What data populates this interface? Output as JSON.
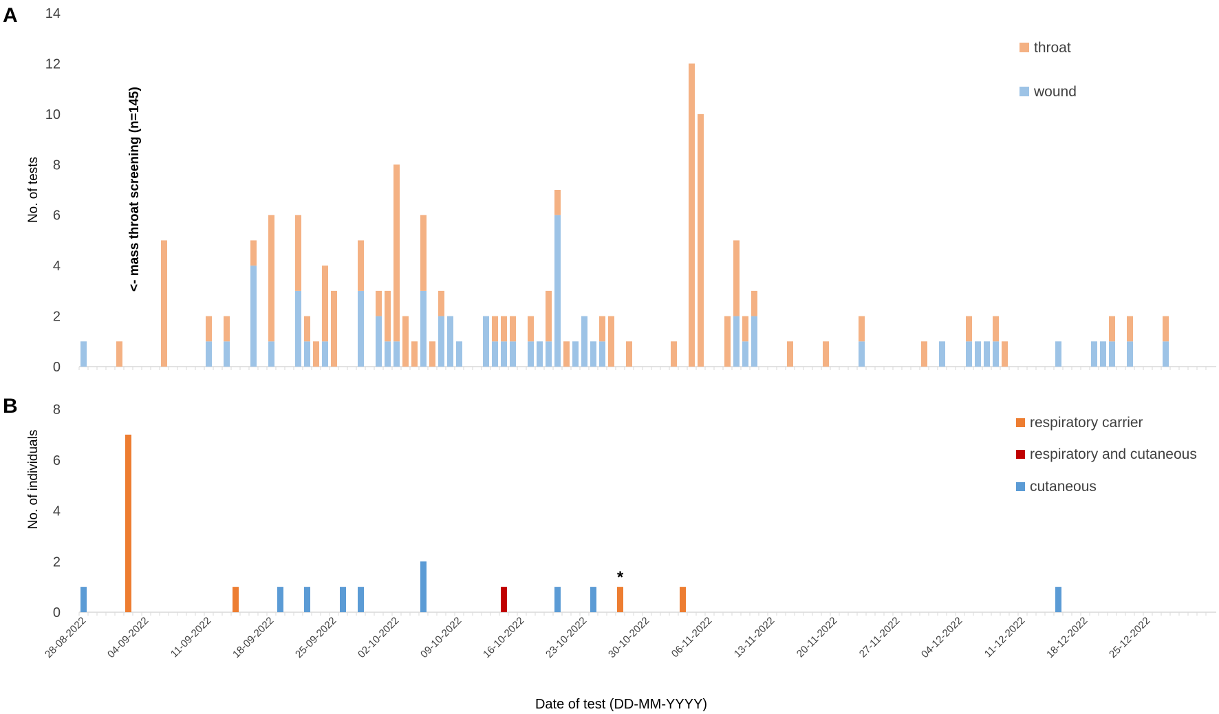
{
  "panel_labels": [
    "A",
    "B"
  ],
  "annotations": {
    "mass_screening": "<- mass throat screening (n=145)",
    "star": "*"
  },
  "xlabel": "Date of test (DD-MM-YYYY)",
  "x_tick_labels": [
    "28-08-2022",
    "04-09-2022",
    "11-09-2022",
    "18-09-2022",
    "25-09-2022",
    "02-10-2022",
    "09-10-2022",
    "16-10-2022",
    "23-10-2022",
    "30-10-2022",
    "06-11-2022",
    "13-11-2022",
    "20-11-2022",
    "27-11-2022",
    "04-12-2022",
    "11-12-2022",
    "18-12-2022",
    "25-12-2022"
  ],
  "colors": {
    "throat": "#F4B183",
    "wound": "#9DC3E6",
    "respiratory_carrier": "#ED7D31",
    "respiratory_and_cutaneous": "#C00000",
    "cutaneous": "#5B9BD5",
    "axis": "#d9d9d9",
    "text": "#404040"
  },
  "chart_data": [
    {
      "panel": "A",
      "type": "bar",
      "stacked": true,
      "x_type": "date",
      "x_range": [
        "2022-08-28",
        "2022-12-31"
      ],
      "ylabel": "No. of tests",
      "ylim": [
        0,
        14
      ],
      "y_ticks": [
        0,
        2,
        4,
        6,
        8,
        10,
        12,
        14
      ],
      "legend_position": "top-right",
      "series": [
        {
          "name": "wound",
          "points": [
            [
              "2022-08-28",
              1
            ],
            [
              "2022-09-11",
              1
            ],
            [
              "2022-09-13",
              1
            ],
            [
              "2022-09-16",
              4
            ],
            [
              "2022-09-18",
              1
            ],
            [
              "2022-09-21",
              3
            ],
            [
              "2022-09-22",
              1
            ],
            [
              "2022-09-24",
              1
            ],
            [
              "2022-09-28",
              3
            ],
            [
              "2022-09-30",
              2
            ],
            [
              "2022-10-01",
              1
            ],
            [
              "2022-10-02",
              1
            ],
            [
              "2022-10-05",
              3
            ],
            [
              "2022-10-07",
              2
            ],
            [
              "2022-10-08",
              2
            ],
            [
              "2022-10-09",
              1
            ],
            [
              "2022-10-12",
              2
            ],
            [
              "2022-10-13",
              1
            ],
            [
              "2022-10-14",
              1
            ],
            [
              "2022-10-15",
              1
            ],
            [
              "2022-10-17",
              1
            ],
            [
              "2022-10-18",
              1
            ],
            [
              "2022-10-19",
              1
            ],
            [
              "2022-10-20",
              6
            ],
            [
              "2022-10-22",
              1
            ],
            [
              "2022-10-23",
              2
            ],
            [
              "2022-10-24",
              1
            ],
            [
              "2022-10-25",
              1
            ],
            [
              "2022-11-09",
              2
            ],
            [
              "2022-11-10",
              1
            ],
            [
              "2022-11-11",
              2
            ],
            [
              "2022-11-23",
              1
            ],
            [
              "2022-12-02",
              1
            ],
            [
              "2022-12-05",
              1
            ],
            [
              "2022-12-06",
              1
            ],
            [
              "2022-12-07",
              1
            ],
            [
              "2022-12-08",
              1
            ],
            [
              "2022-12-15",
              1
            ],
            [
              "2022-12-19",
              1
            ],
            [
              "2022-12-20",
              1
            ],
            [
              "2022-12-21",
              1
            ],
            [
              "2022-12-23",
              1
            ],
            [
              "2022-12-27",
              1
            ]
          ]
        },
        {
          "name": "throat",
          "points": [
            [
              "2022-09-01",
              1
            ],
            [
              "2022-09-06",
              5
            ],
            [
              "2022-09-11",
              1
            ],
            [
              "2022-09-13",
              1
            ],
            [
              "2022-09-16",
              1
            ],
            [
              "2022-09-18",
              5
            ],
            [
              "2022-09-21",
              3
            ],
            [
              "2022-09-22",
              1
            ],
            [
              "2022-09-23",
              1
            ],
            [
              "2022-09-24",
              3
            ],
            [
              "2022-09-25",
              3
            ],
            [
              "2022-09-28",
              2
            ],
            [
              "2022-09-30",
              1
            ],
            [
              "2022-10-01",
              2
            ],
            [
              "2022-10-02",
              7
            ],
            [
              "2022-10-03",
              2
            ],
            [
              "2022-10-04",
              1
            ],
            [
              "2022-10-05",
              3
            ],
            [
              "2022-10-06",
              1
            ],
            [
              "2022-10-07",
              1
            ],
            [
              "2022-10-13",
              1
            ],
            [
              "2022-10-14",
              1
            ],
            [
              "2022-10-15",
              1
            ],
            [
              "2022-10-17",
              1
            ],
            [
              "2022-10-19",
              2
            ],
            [
              "2022-10-20",
              1
            ],
            [
              "2022-10-21",
              1
            ],
            [
              "2022-10-25",
              1
            ],
            [
              "2022-10-26",
              2
            ],
            [
              "2022-10-28",
              1
            ],
            [
              "2022-11-02",
              1
            ],
            [
              "2022-11-04",
              12
            ],
            [
              "2022-11-05",
              10
            ],
            [
              "2022-11-08",
              2
            ],
            [
              "2022-11-09",
              3
            ],
            [
              "2022-11-10",
              1
            ],
            [
              "2022-11-11",
              1
            ],
            [
              "2022-11-15",
              1
            ],
            [
              "2022-11-19",
              1
            ],
            [
              "2022-11-23",
              1
            ],
            [
              "2022-11-30",
              1
            ],
            [
              "2022-12-05",
              1
            ],
            [
              "2022-12-08",
              1
            ],
            [
              "2022-12-09",
              1
            ],
            [
              "2022-12-21",
              1
            ],
            [
              "2022-12-23",
              1
            ],
            [
              "2022-12-27",
              1
            ]
          ]
        }
      ]
    },
    {
      "panel": "B",
      "type": "bar",
      "x_type": "date",
      "x_range": [
        "2022-08-28",
        "2022-12-31"
      ],
      "ylabel": "No. of individuals",
      "ylim": [
        0,
        8
      ],
      "y_ticks": [
        0,
        2,
        4,
        6,
        8
      ],
      "legend_position": "top-right",
      "series": [
        {
          "name": "respiratory carrier",
          "points": [
            [
              "2022-09-02",
              7
            ],
            [
              "2022-09-14",
              1
            ],
            [
              "2022-10-27",
              1
            ],
            [
              "2022-11-03",
              1
            ]
          ]
        },
        {
          "name": "respiratory and cutaneous",
          "points": [
            [
              "2022-10-14",
              1
            ]
          ]
        },
        {
          "name": "cutaneous",
          "points": [
            [
              "2022-08-28",
              1
            ],
            [
              "2022-09-19",
              1
            ],
            [
              "2022-09-22",
              1
            ],
            [
              "2022-09-26",
              1
            ],
            [
              "2022-09-28",
              1
            ],
            [
              "2022-10-05",
              2
            ],
            [
              "2022-10-20",
              1
            ],
            [
              "2022-10-24",
              1
            ],
            [
              "2022-12-15",
              1
            ]
          ]
        }
      ],
      "annotation_date": "2022-10-27"
    }
  ]
}
